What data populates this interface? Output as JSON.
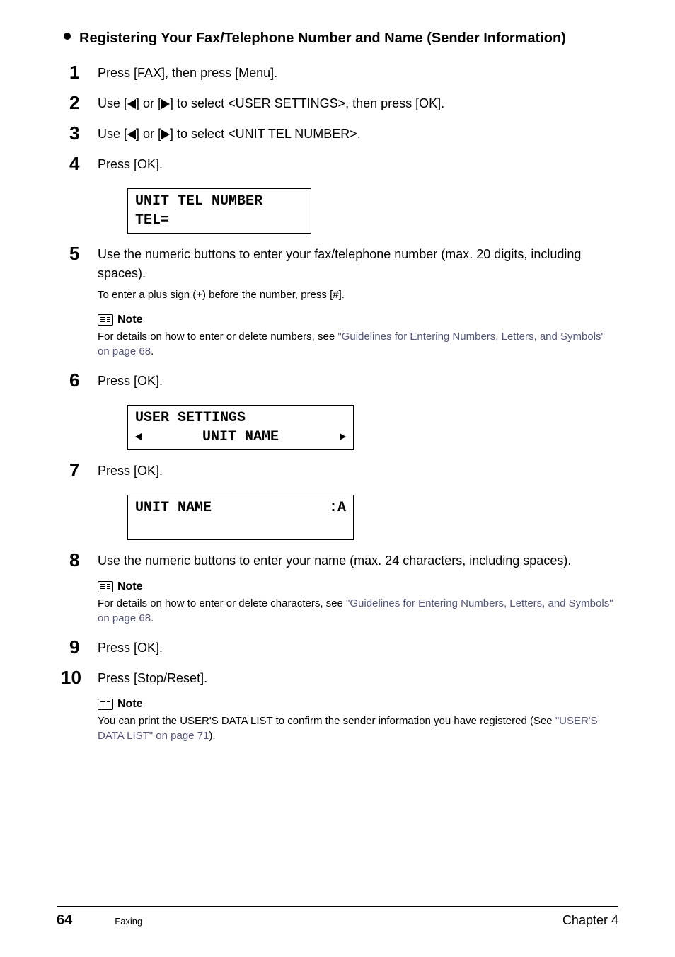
{
  "heading": "Registering Your Fax/Telephone Number and Name (Sender Information)",
  "steps": {
    "s1": {
      "num": "1",
      "text": "Press [FAX], then press [Menu]."
    },
    "s2": {
      "num": "2",
      "prefix": "Use [",
      "mid": "] or [",
      "suffix": "] to select <USER SETTINGS>, then press [OK]."
    },
    "s3": {
      "num": "3",
      "prefix": "Use [",
      "mid": "] or [",
      "suffix": "] to select <UNIT TEL NUMBER>."
    },
    "s4": {
      "num": "4",
      "text": "Press [OK]."
    },
    "s5": {
      "num": "5",
      "text": "Use the numeric buttons to enter your fax/telephone number (max. 20 digits, including spaces).",
      "sub": "To enter a plus sign (+) before the number, press [#]."
    },
    "s6": {
      "num": "6",
      "text": "Press [OK]."
    },
    "s7": {
      "num": "7",
      "text": "Press [OK]."
    },
    "s8": {
      "num": "8",
      "text": "Use the numeric buttons to enter your name (max. 24 characters, including spaces)."
    },
    "s9": {
      "num": "9",
      "text": "Press [OK]."
    },
    "s10": {
      "num": "10",
      "text": "Press [Stop/Reset]."
    }
  },
  "lcd": {
    "tel": {
      "line1": "UNIT TEL NUMBER",
      "line2": "TEL="
    },
    "user": {
      "line1": "USER SETTINGS",
      "line2": "UNIT NAME"
    },
    "name": {
      "left": "UNIT NAME",
      "right": ":A"
    }
  },
  "notes": {
    "title": "Note",
    "n1": {
      "prefix": "For details on how to enter or delete numbers, see ",
      "link": "\"Guidelines for Entering Numbers, Letters, and Symbols\" on page 68",
      "suffix": "."
    },
    "n2": {
      "prefix": "For details on how to enter or delete characters, see ",
      "link": "\"Guidelines for Entering Numbers, Letters, and Symbols\" on page 68",
      "suffix": "."
    },
    "n3": {
      "prefix": "You can print the USER'S DATA LIST to confirm the sender information you have registered (See ",
      "link": "\"USER'S DATA LIST\" on page 71",
      "suffix": ")."
    }
  },
  "footer": {
    "page": "64",
    "section": "Faxing",
    "chapter": "Chapter 4"
  }
}
